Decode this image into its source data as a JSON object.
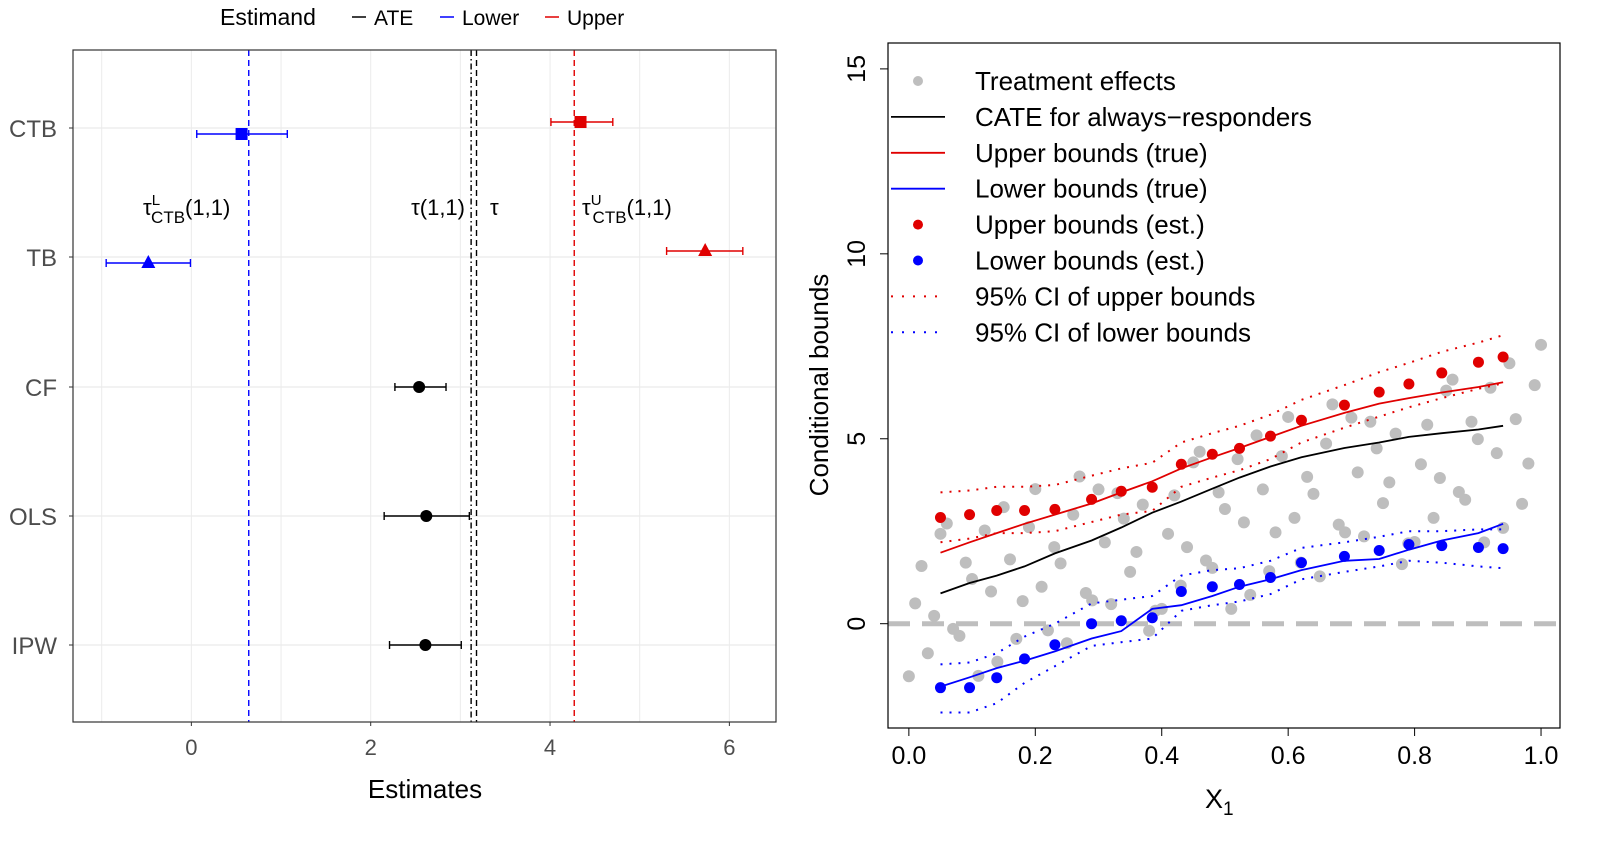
{
  "chart_data": [
    {
      "type": "scatter",
      "subtype": "forest-plot",
      "xlabel": "Estimates",
      "ylabel": "",
      "xlim": [
        -1.32,
        6.52
      ],
      "xticks": [
        0,
        2,
        4,
        6
      ],
      "xtick_labels": [
        "0",
        "2",
        "4",
        "6"
      ],
      "grid": true,
      "legend": {
        "title": "Estimand",
        "placement": "top",
        "entries": [
          {
            "label": "ATE",
            "color": "#000000"
          },
          {
            "label": "Lower",
            "color": "#0000FF"
          },
          {
            "label": "Upper",
            "color": "#E00000"
          }
        ]
      },
      "categories": [
        "CTB",
        "TB",
        "CF",
        "OLS",
        "IPW"
      ],
      "estimates": [
        {
          "method": "CTB",
          "estimand": "Lower",
          "shape": "square",
          "value": 0.56,
          "ci": [
            0.06,
            1.07
          ]
        },
        {
          "method": "CTB",
          "estimand": "Upper",
          "shape": "square",
          "value": 4.34,
          "ci": [
            4.01,
            4.7
          ]
        },
        {
          "method": "TB",
          "estimand": "Lower",
          "shape": "triangle",
          "value": -0.48,
          "ci": [
            -0.95,
            -0.01
          ]
        },
        {
          "method": "TB",
          "estimand": "Upper",
          "shape": "triangle",
          "value": 5.73,
          "ci": [
            5.3,
            6.15
          ]
        },
        {
          "method": "CF",
          "estimand": "ATE",
          "shape": "circle",
          "value": 2.54,
          "ci": [
            2.27,
            2.84
          ]
        },
        {
          "method": "OLS",
          "estimand": "ATE",
          "shape": "circle",
          "value": 2.62,
          "ci": [
            2.15,
            3.1
          ]
        },
        {
          "method": "IPW",
          "estimand": "ATE",
          "shape": "circle",
          "value": 2.61,
          "ci": [
            2.21,
            3.01
          ]
        }
      ],
      "reference_lines": [
        {
          "value": 0.64,
          "color": "#0000FF",
          "style": "dashed",
          "label_main": "τ",
          "label_sup": "L",
          "label_sub": "CTB",
          "label_tail": "(1,1)"
        },
        {
          "value": 3.12,
          "color": "#000000",
          "style": "dotdash",
          "label_main": "τ(1,1)",
          "label_sup": "",
          "label_sub": "",
          "label_tail": ""
        },
        {
          "value": 3.18,
          "color": "#000000",
          "style": "dashed",
          "label_main": "τ",
          "label_sup": "",
          "label_sub": "",
          "label_tail": ""
        },
        {
          "value": 4.27,
          "color": "#E00000",
          "style": "dashed",
          "label_main": "τ",
          "label_sup": "U",
          "label_sub": "CTB",
          "label_tail": "(1,1)"
        }
      ]
    },
    {
      "type": "scatter",
      "xlabel_main": "X",
      "xlabel_sub": "1",
      "ylabel": "Conditional bounds",
      "xlim": [
        -0.033,
        1.03
      ],
      "ylim": [
        -2.82,
        15.7
      ],
      "xticks": [
        0.0,
        0.2,
        0.4,
        0.6,
        0.8,
        1.0
      ],
      "xtick_labels": [
        "0.0",
        "0.2",
        "0.4",
        "0.6",
        "0.8",
        "1.0"
      ],
      "yticks": [
        0,
        5,
        10,
        15
      ],
      "ytick_labels": [
        "0",
        "5",
        "10",
        "15"
      ],
      "reference_line": {
        "y": 0,
        "color": "#BEBEBE",
        "style": "dashed"
      },
      "legend": {
        "placement": "top-left",
        "entries": [
          {
            "label": "Treatment effects",
            "symbol": "point",
            "color": "#BEBEBE"
          },
          {
            "label": "CATE for always−responders",
            "symbol": "line",
            "color": "#000000"
          },
          {
            "label": "Upper bounds (true)",
            "symbol": "line",
            "color": "#E00000"
          },
          {
            "label": "Lower bounds (true)",
            "symbol": "line",
            "color": "#0000FF"
          },
          {
            "label": "Upper bounds (est.)",
            "symbol": "point",
            "color": "#E00000"
          },
          {
            "label": "Lower bounds (est.)",
            "symbol": "point",
            "color": "#0000FF"
          },
          {
            "label": "95% CI of upper bounds",
            "symbol": "dotted",
            "color": "#E00000"
          },
          {
            "label": "95% CI of lower bounds",
            "symbol": "dotted",
            "color": "#0000FF"
          }
        ]
      },
      "x": [
        0.05,
        0.096,
        0.139,
        0.183,
        0.231,
        0.289,
        0.336,
        0.385,
        0.431,
        0.48,
        0.523,
        0.572,
        0.621,
        0.689,
        0.744,
        0.791,
        0.843,
        0.901,
        0.94
      ],
      "series": [
        {
          "name": "CATE for always−responders",
          "kind": "line",
          "color": "#000000",
          "values": [
            0.82,
            1.1,
            1.3,
            1.55,
            1.9,
            2.25,
            2.6,
            3.0,
            3.3,
            3.65,
            3.95,
            4.25,
            4.5,
            4.75,
            4.9,
            5.05,
            5.15,
            5.25,
            5.35
          ]
        },
        {
          "name": "Upper bounds (true)",
          "kind": "line",
          "color": "#E00000",
          "values": [
            1.92,
            2.2,
            2.45,
            2.7,
            2.95,
            3.25,
            3.55,
            3.85,
            4.2,
            4.5,
            4.75,
            5.05,
            5.35,
            5.7,
            5.95,
            6.1,
            6.25,
            6.4,
            6.53
          ]
        },
        {
          "name": "Lower bounds (true)",
          "kind": "line",
          "color": "#0000FF",
          "values": [
            -1.7,
            -1.45,
            -1.2,
            -1.0,
            -0.75,
            -0.4,
            -0.2,
            0.4,
            0.5,
            0.75,
            1.0,
            1.2,
            1.45,
            1.7,
            1.75,
            2.0,
            2.25,
            2.45,
            2.7
          ]
        },
        {
          "name": "Upper bounds (est.)",
          "kind": "points",
          "color": "#E00000",
          "values": [
            2.87,
            2.95,
            3.06,
            3.06,
            3.09,
            3.36,
            3.58,
            3.69,
            4.31,
            4.58,
            4.74,
            5.07,
            5.5,
            5.91,
            6.26,
            6.48,
            6.78,
            7.07,
            7.21
          ]
        },
        {
          "name": "Lower bounds (est.)",
          "kind": "points",
          "color": "#0000FF",
          "values": [
            -1.73,
            -1.73,
            -1.46,
            -0.95,
            -0.57,
            0.0,
            0.08,
            0.16,
            0.87,
            1.0,
            1.06,
            1.25,
            1.65,
            1.82,
            1.98,
            2.14,
            2.11,
            2.06,
            2.03
          ]
        },
        {
          "name": "95% CI of upper bounds",
          "kind": "dotted",
          "color": "#E00000",
          "upper": [
            3.55,
            3.6,
            3.7,
            3.7,
            3.75,
            4.0,
            4.2,
            4.35,
            4.9,
            5.15,
            5.35,
            5.65,
            6.05,
            6.45,
            6.8,
            7.05,
            7.35,
            7.6,
            7.8
          ],
          "lower": [
            2.2,
            2.3,
            2.45,
            2.45,
            2.5,
            2.75,
            2.95,
            3.05,
            3.7,
            3.95,
            4.15,
            4.45,
            4.9,
            5.3,
            5.6,
            5.85,
            6.1,
            6.35,
            6.5
          ]
        },
        {
          "name": "95% CI of lower bounds",
          "kind": "dotted",
          "color": "#0000FF",
          "upper": [
            -1.1,
            -1.05,
            -0.8,
            -0.35,
            0.0,
            0.55,
            0.65,
            0.75,
            1.3,
            1.45,
            1.5,
            1.7,
            2.05,
            2.2,
            2.35,
            2.5,
            2.5,
            2.55,
            2.55
          ],
          "lower": [
            -2.4,
            -2.4,
            -2.15,
            -1.6,
            -1.15,
            -0.6,
            -0.5,
            -0.4,
            0.35,
            0.5,
            0.6,
            0.8,
            1.2,
            1.4,
            1.55,
            1.7,
            1.65,
            1.55,
            1.5
          ]
        }
      ],
      "treatment_effects": [
        [
          0.0,
          -1.42
        ],
        [
          0.02,
          1.56
        ],
        [
          0.04,
          0.21
        ],
        [
          0.06,
          2.71
        ],
        [
          0.08,
          -0.33
        ],
        [
          0.1,
          1.21
        ],
        [
          0.12,
          2.52
        ],
        [
          0.14,
          -1.03
        ],
        [
          0.16,
          1.74
        ],
        [
          0.18,
          0.61
        ],
        [
          0.2,
          3.64
        ],
        [
          0.22,
          -0.18
        ],
        [
          0.24,
          1.63
        ],
        [
          0.26,
          2.95
        ],
        [
          0.28,
          0.83
        ],
        [
          0.3,
          3.63
        ],
        [
          0.32,
          0.53
        ],
        [
          0.34,
          2.84
        ],
        [
          0.36,
          1.94
        ],
        [
          0.38,
          -0.19
        ],
        [
          0.4,
          0.4
        ],
        [
          0.42,
          3.47
        ],
        [
          0.44,
          2.07
        ],
        [
          0.46,
          4.65
        ],
        [
          0.48,
          1.51
        ],
        [
          0.5,
          3.1
        ],
        [
          0.52,
          4.45
        ],
        [
          0.54,
          0.78
        ],
        [
          0.56,
          3.63
        ],
        [
          0.58,
          2.47
        ],
        [
          0.6,
          5.59
        ],
        [
          0.62,
          1.65
        ],
        [
          0.64,
          3.51
        ],
        [
          0.66,
          4.87
        ],
        [
          0.68,
          2.68
        ],
        [
          0.7,
          5.57
        ],
        [
          0.72,
          2.36
        ],
        [
          0.74,
          4.74
        ],
        [
          0.76,
          3.82
        ],
        [
          0.78,
          1.61
        ],
        [
          0.8,
          2.21
        ],
        [
          0.82,
          5.38
        ],
        [
          0.84,
          3.94
        ],
        [
          0.86,
          6.6
        ],
        [
          0.88,
          3.35
        ],
        [
          0.9,
          4.99
        ],
        [
          0.92,
          6.38
        ],
        [
          0.94,
          2.59
        ],
        [
          0.96,
          5.53
        ],
        [
          0.98,
          4.33
        ],
        [
          1.0,
          7.54
        ],
        [
          0.01,
          0.55
        ],
        [
          0.03,
          -0.8
        ],
        [
          0.05,
          2.43
        ],
        [
          0.07,
          -0.14
        ],
        [
          0.09,
          1.65
        ],
        [
          0.11,
          -1.41
        ],
        [
          0.13,
          0.87
        ],
        [
          0.15,
          3.15
        ],
        [
          0.17,
          -0.41
        ],
        [
          0.19,
          2.61
        ],
        [
          0.21,
          1.0
        ],
        [
          0.23,
          2.07
        ],
        [
          0.25,
          -0.53
        ],
        [
          0.27,
          3.98
        ],
        [
          0.29,
          0.63
        ],
        [
          0.31,
          2.2
        ],
        [
          0.33,
          3.53
        ],
        [
          0.35,
          1.4
        ],
        [
          0.37,
          3.22
        ],
        [
          0.39,
          0.35
        ],
        [
          0.41,
          2.43
        ],
        [
          0.43,
          1.03
        ],
        [
          0.45,
          4.36
        ],
        [
          0.47,
          1.71
        ],
        [
          0.49,
          3.55
        ],
        [
          0.51,
          0.4
        ],
        [
          0.53,
          2.74
        ],
        [
          0.55,
          5.09
        ],
        [
          0.57,
          1.42
        ],
        [
          0.59,
          4.53
        ],
        [
          0.61,
          2.86
        ],
        [
          0.63,
          3.97
        ],
        [
          0.65,
          1.28
        ],
        [
          0.67,
          5.93
        ],
        [
          0.69,
          2.47
        ],
        [
          0.71,
          4.09
        ],
        [
          0.73,
          5.46
        ],
        [
          0.75,
          3.26
        ],
        [
          0.77,
          5.14
        ],
        [
          0.79,
          2.17
        ],
        [
          0.81,
          4.31
        ],
        [
          0.83,
          2.86
        ],
        [
          0.85,
          6.3
        ],
        [
          0.87,
          3.56
        ],
        [
          0.89,
          5.46
        ],
        [
          0.91,
          2.2
        ],
        [
          0.93,
          4.61
        ],
        [
          0.95,
          7.04
        ],
        [
          0.97,
          3.24
        ],
        [
          0.99,
          6.45
        ]
      ]
    }
  ]
}
